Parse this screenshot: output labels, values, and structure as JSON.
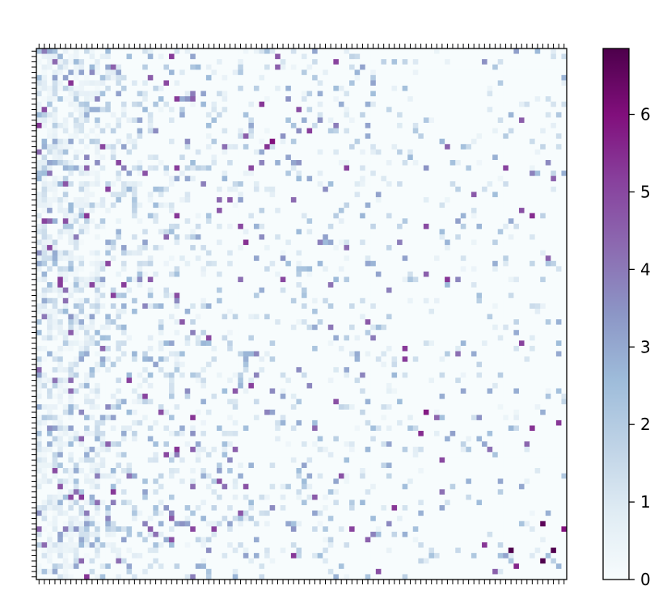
{
  "chart_data": {
    "type": "heatmap",
    "title": "",
    "xlabel": "",
    "ylabel": "",
    "rows": 100,
    "cols": 100,
    "colormap": "BuPu",
    "colorbar": {
      "min": 0,
      "max": 6.85,
      "ticks": [
        0,
        1,
        2,
        3,
        4,
        5,
        6
      ],
      "tick_labels": [
        "0",
        "1",
        "2",
        "3",
        "4",
        "5",
        "6"
      ]
    },
    "grid": false,
    "x_tick_labels_shown": false,
    "y_tick_labels_shown": false,
    "notable_high_cells": [
      {
        "row": 89,
        "col": 95,
        "value": 6.6
      },
      {
        "row": 90,
        "col": 99,
        "value": 6.0
      },
      {
        "row": 94,
        "col": 89,
        "value": 6.8
      },
      {
        "row": 94,
        "col": 97,
        "value": 6.8
      },
      {
        "row": 96,
        "col": 95,
        "value": 6.8
      },
      {
        "row": 17,
        "col": 44,
        "value": 6.0
      },
      {
        "row": 31,
        "col": 93,
        "value": 5.5
      },
      {
        "row": 22,
        "col": 26,
        "value": 5.2
      },
      {
        "row": 72,
        "col": 72,
        "value": 5.5
      },
      {
        "row": 68,
        "col": 73,
        "value": 5.8
      },
      {
        "row": 97,
        "col": 90,
        "value": 5.6
      },
      {
        "row": 43,
        "col": 46,
        "value": 5.0
      },
      {
        "row": 22,
        "col": 40,
        "value": 5.0
      }
    ]
  }
}
